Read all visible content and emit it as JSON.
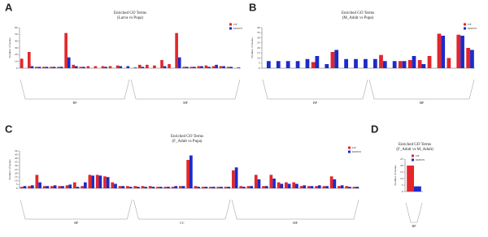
{
  "chart_data": [
    {
      "type": "bar",
      "panel": "A",
      "title": "Enriched GO Terms",
      "subtitle": "(Larva vs Pupa)",
      "ylabel": "Number of Genes",
      "categories": [
        null,
        null,
        null,
        null,
        null,
        null,
        null,
        null,
        null,
        null,
        null,
        null,
        null,
        null,
        null,
        null,
        null,
        null,
        null,
        null,
        null,
        null,
        null,
        null,
        null,
        null,
        null,
        null,
        null,
        null
      ],
      "series": [
        {
          "name": "UP",
          "color": "#e3262b",
          "values": [
            14,
            24,
            2,
            2,
            2,
            2,
            52,
            5,
            2,
            3,
            3,
            3,
            3,
            4,
            0,
            0,
            5,
            5,
            4,
            12,
            6,
            52,
            2,
            2,
            3,
            4,
            3,
            3,
            2,
            0
          ]
        },
        {
          "name": "DOWN",
          "color": "#1c2bc9",
          "values": [
            0,
            3,
            2,
            2,
            2,
            2,
            16,
            3,
            2,
            0,
            0,
            2,
            0,
            3,
            3,
            1,
            2,
            0,
            0,
            3,
            0,
            16,
            2,
            2,
            3,
            2,
            5,
            3,
            2,
            1
          ]
        }
      ],
      "groups": [
        {
          "label": "BP",
          "start": 0,
          "end": 14
        },
        {
          "label": "MF",
          "start": 15,
          "end": 29
        }
      ],
      "ylim": [
        0,
        60
      ],
      "yticks": [
        0,
        10,
        20,
        30,
        40,
        50,
        60
      ]
    },
    {
      "type": "bar",
      "panel": "B",
      "title": "Enriched GO Terms",
      "subtitle": "(M_Adult vs Pupa)",
      "ylabel": "Number of Genes",
      "categories": [
        null,
        null,
        null,
        null,
        null,
        null,
        null,
        null,
        null,
        null,
        null,
        null,
        null,
        null,
        null,
        null,
        null,
        null,
        null,
        null,
        null,
        null
      ],
      "series": [
        {
          "name": "UP",
          "color": "#e3262b",
          "values": [
            0,
            0,
            0,
            0,
            0,
            6,
            0,
            16,
            0,
            0,
            0,
            0,
            13,
            0,
            7,
            8,
            8,
            12,
            34,
            10,
            33,
            20
          ]
        },
        {
          "name": "DOWN",
          "color": "#1c2bc9",
          "values": [
            7,
            7,
            7,
            7,
            9,
            12,
            4,
            18,
            9,
            9,
            9,
            9,
            7,
            7,
            7,
            12,
            4,
            0,
            32,
            0,
            32,
            18
          ]
        }
      ],
      "groups": [
        {
          "label": "BP",
          "start": 0,
          "end": 10
        },
        {
          "label": "MF",
          "start": 11,
          "end": 21
        }
      ],
      "ylim": [
        0,
        40
      ],
      "yticks": [
        0,
        5,
        10,
        15,
        20,
        25,
        30,
        35,
        40
      ]
    },
    {
      "type": "bar",
      "panel": "C",
      "title": "Enriched GO Terms",
      "subtitle": "(F_Adult vs Pupa)",
      "ylabel": "Number of Genes",
      "categories": [
        null,
        null,
        null,
        null,
        null,
        null,
        null,
        null,
        null,
        null,
        null,
        null,
        null,
        null,
        null,
        null,
        null,
        null,
        null,
        null,
        null,
        null,
        null,
        null,
        null,
        null,
        null,
        null,
        null,
        null,
        null,
        null,
        null,
        null,
        null,
        null,
        null,
        null,
        null,
        null,
        null,
        null,
        null,
        null,
        null
      ],
      "series": [
        {
          "name": "UP",
          "color": "#e3262b",
          "values": [
            2,
            3,
            18,
            3,
            3,
            3,
            4,
            8,
            3,
            18,
            18,
            16,
            8,
            3,
            3,
            3,
            3,
            3,
            2,
            2,
            2,
            3,
            38,
            3,
            2,
            2,
            2,
            2,
            24,
            3,
            3,
            18,
            3,
            18,
            8,
            8,
            8,
            3,
            3,
            3,
            3,
            16,
            3,
            3,
            2
          ]
        },
        {
          "name": "DOWN",
          "color": "#1c2bc9",
          "values": [
            3,
            4,
            8,
            3,
            4,
            3,
            5,
            2,
            8,
            17,
            17,
            15,
            6,
            3,
            2,
            2,
            2,
            2,
            2,
            2,
            3,
            3,
            44,
            2,
            2,
            2,
            2,
            2,
            28,
            2,
            3,
            12,
            3,
            13,
            6,
            6,
            6,
            4,
            3,
            4,
            3,
            12,
            4,
            2,
            2
          ]
        }
      ],
      "groups": [
        {
          "label": "BP",
          "start": 0,
          "end": 14
        },
        {
          "label": "CC",
          "start": 15,
          "end": 27
        },
        {
          "label": "MF",
          "start": 28,
          "end": 44
        }
      ],
      "ylim": [
        0,
        50
      ],
      "yticks": [
        0,
        5,
        10,
        15,
        20,
        25,
        30,
        35,
        40,
        45,
        50
      ]
    },
    {
      "type": "bar",
      "panel": "D",
      "title": "Enriched GO Terms",
      "subtitle": "(F_Adult vs M_Adult)",
      "ylabel": "Number of Genes",
      "categories": [
        null
      ],
      "series": [
        {
          "name": "UP",
          "color": "#e3262b",
          "values": [
            20
          ]
        },
        {
          "name": "DOWN",
          "color": "#1c2bc9",
          "values": [
            4
          ]
        }
      ],
      "groups": [
        {
          "label": "BP",
          "start": 0,
          "end": 0
        }
      ],
      "ylim": [
        0,
        25
      ],
      "yticks": [
        0,
        5,
        10,
        15,
        20,
        25
      ]
    }
  ]
}
